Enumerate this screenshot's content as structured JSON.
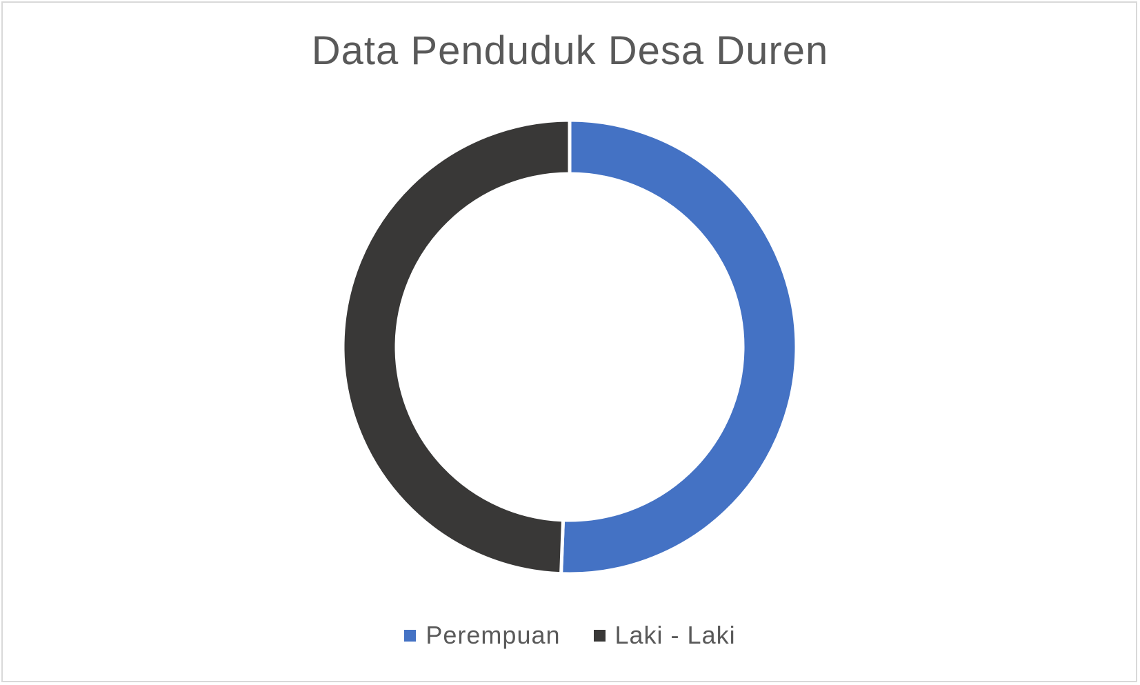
{
  "chart_data": {
    "type": "pie",
    "variant": "donut",
    "title": "Data Penduduk Desa Duren",
    "series": [
      {
        "values": [
          50.6,
          49.4
        ]
      }
    ],
    "categories": [
      "Perempuan",
      "Laki - Laki"
    ],
    "colors": [
      "#4472C4",
      "#393837"
    ],
    "legend": "bottom"
  }
}
